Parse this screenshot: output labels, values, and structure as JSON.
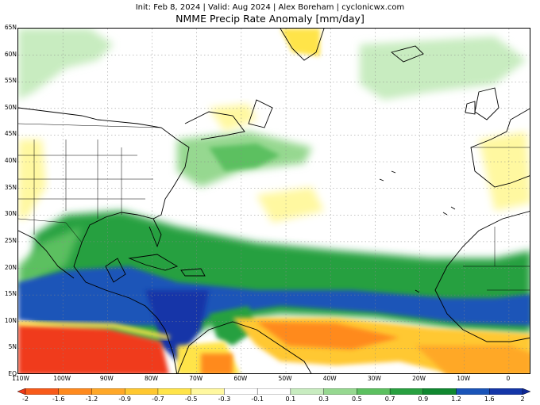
{
  "header": {
    "subtitle": "Init: Feb 8, 2024 | Valid: Aug 2024 | Alex Boreham | cyclonicwx.com",
    "title": "NMME Precip Rate Anomaly [mm/day]"
  },
  "map": {
    "projection": "lat-lon",
    "lat_range": [
      0,
      65
    ],
    "lon_range": [
      -110,
      5
    ],
    "lat_labels": [
      "65N",
      "60N",
      "55N",
      "50N",
      "45N",
      "40N",
      "35N",
      "30N",
      "25N",
      "20N",
      "15N",
      "10N",
      "5N",
      "EQ"
    ],
    "lon_labels": [
      "110W",
      "100W",
      "90W",
      "80W",
      "70W",
      "60W",
      "50W",
      "40W",
      "30W",
      "20W",
      "10W",
      "0"
    ]
  },
  "colorbar": {
    "labels": [
      "-2",
      "-1.6",
      "-1.2",
      "-0.9",
      "-0.7",
      "-0.5",
      "-0.3",
      "-0.1",
      "0.1",
      "0.3",
      "0.5",
      "0.7",
      "0.9",
      "1.2",
      "1.6",
      "2"
    ],
    "colors": [
      "#f03a1a",
      "#f85a1a",
      "#ff8a1e",
      "#ffa828",
      "#ffc830",
      "#ffe44a",
      "#fff8a0",
      "#ffffff",
      "#ffffff",
      "#c8ecc0",
      "#96d890",
      "#5cc060",
      "#28a040",
      "#108830",
      "#1a54b8",
      "#1436a8",
      "#102898"
    ]
  }
}
